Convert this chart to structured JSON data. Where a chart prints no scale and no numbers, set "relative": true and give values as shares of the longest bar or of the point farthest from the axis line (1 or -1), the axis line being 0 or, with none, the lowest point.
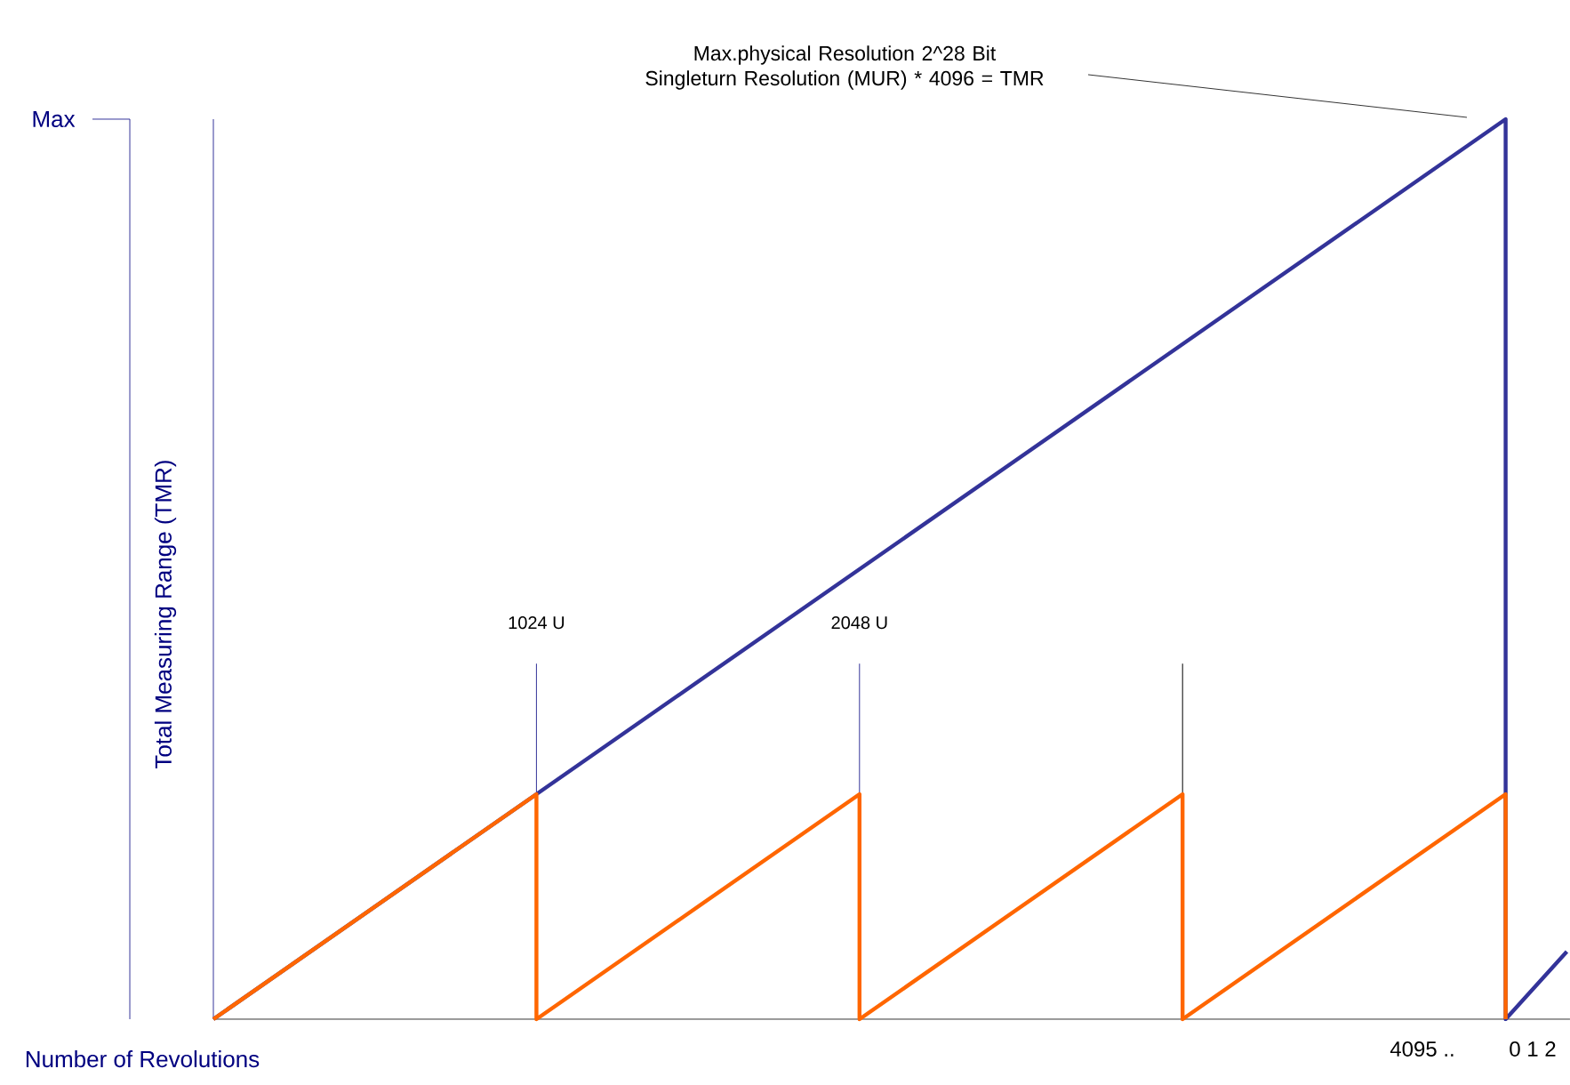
{
  "chart_data": {
    "type": "line",
    "relative": true,
    "xlabel": "Number of Revolutions",
    "ylabel": "Total Measuring Range (TMR)",
    "xlim": [
      0,
      4300
    ],
    "xticks": [
      {
        "value": 1024,
        "label": "1024 U"
      },
      {
        "value": 2048,
        "label": "2048 U"
      }
    ],
    "ref_lines": [
      {
        "axis": "x",
        "value": 1024,
        "color": "#333399"
      },
      {
        "axis": "x",
        "value": 2048,
        "color": "#333399"
      },
      {
        "axis": "x",
        "value": 3072,
        "color": "#000000"
      }
    ],
    "series": [
      {
        "color": "#333399",
        "x": [
          0,
          1024,
          4096,
          4096,
          4290
        ],
        "values": [
          0,
          0.25,
          1,
          0,
          0.075
        ]
      },
      {
        "color": "#ff6600",
        "x": [
          0,
          1024,
          1024,
          2048,
          2048,
          3072,
          3072,
          4096,
          4096
        ],
        "values": [
          0,
          0.25,
          0,
          0.25,
          0,
          0.25,
          0,
          0.25,
          0
        ]
      }
    ],
    "annotations": [
      "Max.physical Resolution 2^28 Bit Singleturn Resolution (MUR)  * 4096 = TMR",
      "Max",
      "4095 ..",
      "0 1 2"
    ],
    "marker": "none",
    "line_style": "solid"
  }
}
